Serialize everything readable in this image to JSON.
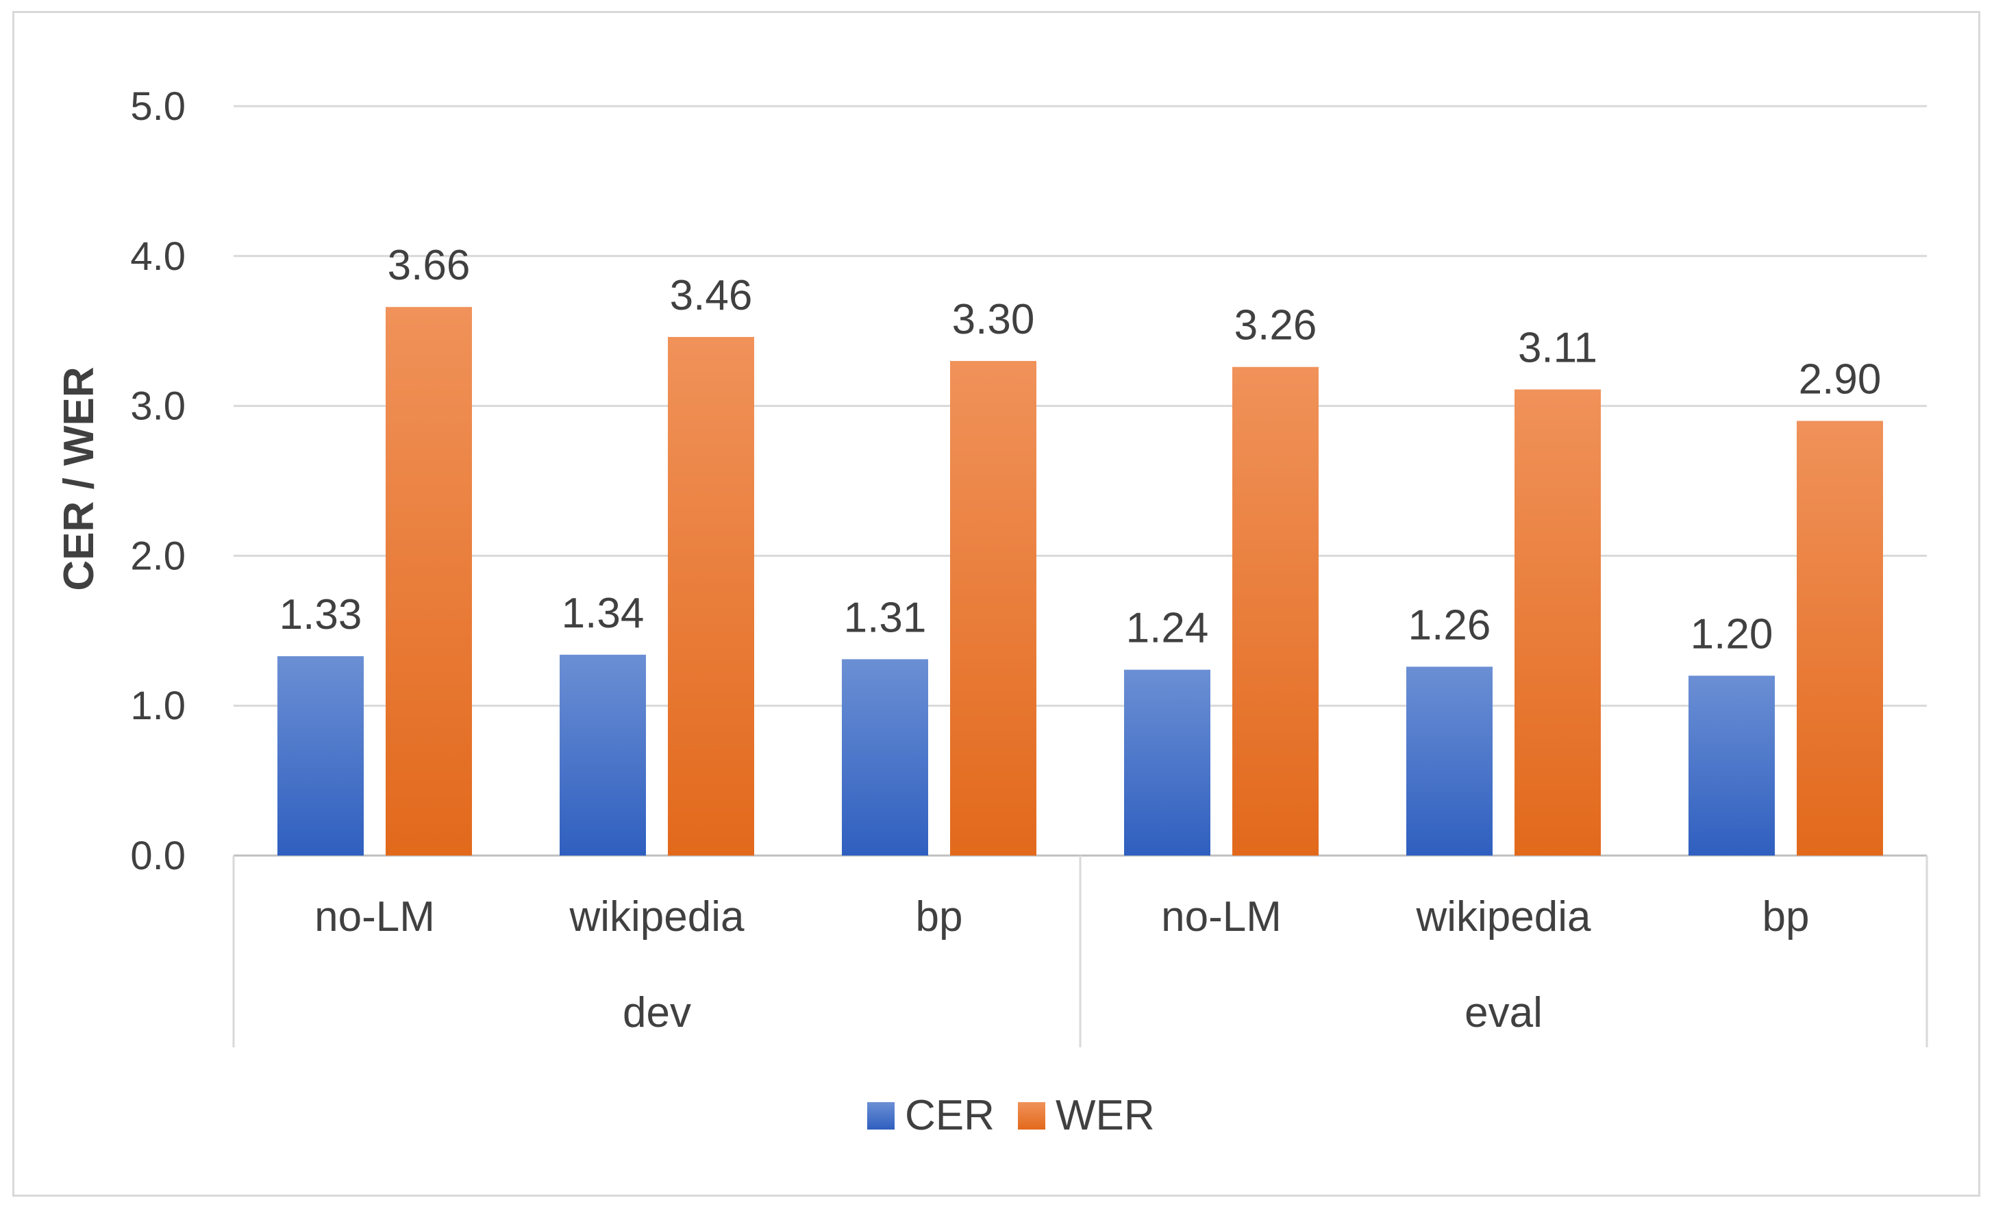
{
  "chart_data": {
    "type": "bar",
    "ylabel": "CER / WER",
    "ylim": [
      0,
      5
    ],
    "yticks": [
      "0.0",
      "1.0",
      "2.0",
      "3.0",
      "4.0",
      "5.0"
    ],
    "grid": true,
    "legend_position": "bottom-center",
    "groups": [
      {
        "label": "dev",
        "categories": [
          "no-LM",
          "wikipedia",
          "bp"
        ]
      },
      {
        "label": "eval",
        "categories": [
          "no-LM",
          "wikipedia",
          "bp"
        ]
      }
    ],
    "categories": [
      "no-LM",
      "wikipedia",
      "bp",
      "no-LM",
      "wikipedia",
      "bp"
    ],
    "series": [
      {
        "name": "CER",
        "color": "#4472c4",
        "values": [
          1.33,
          1.34,
          1.31,
          1.24,
          1.26,
          1.2
        ],
        "labels": [
          "1.33",
          "1.34",
          "1.31",
          "1.24",
          "1.26",
          "1.20"
        ]
      },
      {
        "name": "WER",
        "color": "#ed7d31",
        "values": [
          3.66,
          3.46,
          3.3,
          3.26,
          3.11,
          2.9
        ],
        "labels": [
          "3.66",
          "3.46",
          "3.30",
          "3.26",
          "3.11",
          "2.90"
        ]
      }
    ]
  }
}
